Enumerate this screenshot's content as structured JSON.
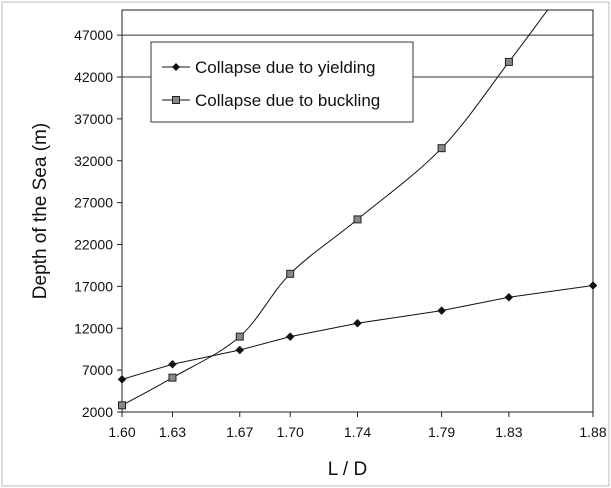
{
  "chart_data": {
    "type": "line",
    "x_categories": [
      "1.60",
      "1.63",
      "1.67",
      "1.70",
      "1.74",
      "1.79",
      "1.83",
      "1.88"
    ],
    "xlabel": "L / D",
    "ylabel": "Depth of the Sea (m)",
    "ylim": [
      2000,
      50000
    ],
    "y_ticks": [
      2000,
      7000,
      12000,
      17000,
      22000,
      27000,
      32000,
      37000,
      42000,
      47000
    ],
    "grid": false,
    "legend_position": "top-left",
    "series": [
      {
        "name": "Collapse due to yielding",
        "marker": "diamond",
        "color": "#111111",
        "values": [
          5900,
          7700,
          9400,
          11000,
          12600,
          14100,
          15700,
          17100
        ],
        "curve_end": null
      },
      {
        "name": "Collapse due to buckling",
        "marker": "square",
        "color": "#111111",
        "values": [
          2800,
          6100,
          11000,
          18500,
          25000,
          33500,
          43800,
          null
        ],
        "curve_end": {
          "x": 1.853,
          "y": 50000
        }
      }
    ]
  }
}
